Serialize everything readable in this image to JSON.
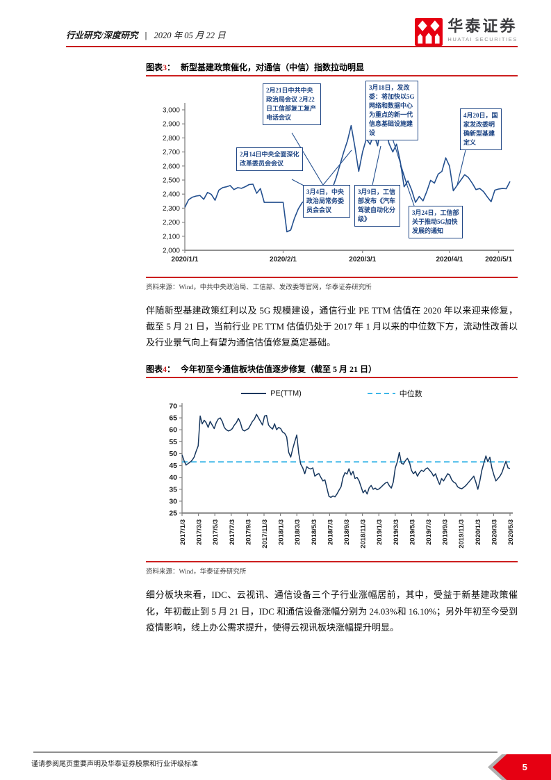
{
  "header": {
    "category": "行业研究/深度研究",
    "divider": "|",
    "date": "2020 年 05 月 22 日",
    "brand_cn": "华泰证券",
    "brand_en": "HUATAI SECURITIES"
  },
  "figures": [
    {
      "prefix": "图表",
      "num": "3",
      "colon": "：",
      "title": "新型基建政策催化，对通信（中信）指数拉动明显",
      "source": "资料来源：Wind，中共中央政治局、工信部、发改委等官网，华泰证券研究所",
      "annotations": [
        "2月14日中央全面深化改革委员会会议",
        "2月21日中共中央政治局会议 2月22日工信部复工复产电话会议",
        "3月4日，中央政治局常务委员会会议",
        "3月9日，工信部发布《汽车驾驶自动化分级》",
        "3月18日，发改委：将加快以5G网络和数据中心为重点的新一代信息基础设施建设",
        "3月24日，工信部关于推动5G加快发展的通知",
        "4月20日，国家发改委明确新型基建定义"
      ]
    },
    {
      "prefix": "图表",
      "num": "4",
      "colon": "：",
      "title": "今年初至今通信板块估值逐步修复（截至 5 月 21 日）",
      "source": "资料来源：Wind，华泰证券研究所"
    }
  ],
  "paragraphs": {
    "p1": "伴随新型基建政策红利以及 5G 规模建设，通信行业 PE TTM 估值在 2020 年以来迎来修复，截至 5 月 21 日，当前行业 PE TTM 估值仍处于 2017 年 1 月以来的中位数下方，流动性改善以及行业景气向上有望为通信估值修复奠定基础。",
    "p2": "细分板块来看，IDC、云视讯、通信设备三个子行业涨幅居前，其中，受益于新基建政策催化，年初截止到 5 月 21 日，IDC 和通信设备涨幅分别为 24.03%和 16.10%；另外年初至今受到疫情影响，线上办公需求提升，使得云视讯板块涨幅提升明显。"
  },
  "chart_data": [
    {
      "type": "line",
      "title": "新型基建政策催化，对通信（中信）指数拉动明显",
      "ylim": [
        2000,
        3000
      ],
      "yticks": [
        2000,
        2100,
        2200,
        2300,
        2400,
        2500,
        2600,
        2700,
        2800,
        2900,
        3000
      ],
      "x_tick_labels": [
        "2020/1/1",
        "2020/2/1",
        "2020/3/1",
        "2020/4/1",
        "2020/5/1"
      ],
      "x_tick_indices": [
        0,
        26,
        47,
        70,
        83
      ],
      "line_color": "#24508f",
      "values": [
        2305,
        2360,
        2378,
        2386,
        2390,
        2363,
        2412,
        2398,
        2356,
        2428,
        2446,
        2452,
        2461,
        2432,
        2446,
        2441,
        2453,
        2468,
        2471,
        2406,
        2439,
        2341,
        2341,
        2341,
        2341,
        2341,
        2341,
        2131,
        2144,
        2228,
        2294,
        2338,
        2361,
        2390,
        2399,
        2384,
        2371,
        2404,
        2366,
        2438,
        2515,
        2605,
        2698,
        2778,
        2888,
        2732,
        2562,
        2700,
        2793,
        2754,
        2828,
        2744,
        2908,
        2878,
        2760,
        2700,
        2756,
        2628,
        2452,
        2494,
        2428,
        2341,
        2383,
        2352,
        2420,
        2498,
        2478,
        2542,
        2562,
        2658,
        2600,
        2424,
        2462,
        2500,
        2538,
        2518,
        2478,
        2432,
        2440,
        2418,
        2380,
        2346,
        2428,
        2436,
        2440,
        2438,
        2490
      ]
    },
    {
      "type": "line",
      "title": "今年初至今通信板块估值逐步修复（截至 5 月 21 日）",
      "legend": [
        "PE(TTM)",
        "中位数"
      ],
      "ylim": [
        25,
        70
      ],
      "yticks": [
        25,
        30,
        35,
        40,
        45,
        50,
        55,
        60,
        65,
        70
      ],
      "x_tick_labels": [
        "2017/1/3",
        "2017/3/3",
        "2017/5/3",
        "2017/7/3",
        "2017/9/3",
        "2017/11/3",
        "2018/1/3",
        "2018/3/3",
        "2018/5/3",
        "2018/7/3",
        "2018/9/3",
        "2018/11/3",
        "2019/1/3",
        "2019/3/3",
        "2019/5/3",
        "2019/7/3",
        "2019/9/3",
        "2019/11/3",
        "2020/1/3",
        "2020/3/3",
        "2020/5/3"
      ],
      "median": 46.5,
      "line_color": "#17375e",
      "median_color": "#3cb6e8",
      "values": [
        49.5,
        47.0,
        45.2,
        45.8,
        46.4,
        47.2,
        48.5,
        51.0,
        53.2,
        65.8,
        62.5,
        64.0,
        63.0,
        61.0,
        63.5,
        62.0,
        60.5,
        63.0,
        64.5,
        65.0,
        63.5,
        61.0,
        60.0,
        59.5,
        59.8,
        60.5,
        62.0,
        63.0,
        64.8,
        63.0,
        60.0,
        59.5,
        60.0,
        60.5,
        62.0,
        63.5,
        64.5,
        66.5,
        65.0,
        63.5,
        62.0,
        65.8,
        66.0,
        62.0,
        61.0,
        60.3,
        62.5,
        60.0,
        61.0,
        60.5,
        59.0,
        58.5,
        57.0,
        50.5,
        48.5,
        52.0,
        55.0,
        57.8,
        50.0,
        45.5,
        44.0,
        41.5,
        44.5,
        43.8,
        43.5,
        44.0,
        40.5,
        41.2,
        41.6,
        40.0,
        38.5,
        39.0,
        35.5,
        32.0,
        31.6,
        32.2,
        31.8,
        33.0,
        34.6,
        36.0,
        40.0,
        42.0,
        41.4,
        43.6,
        41.0,
        42.5,
        39.5,
        40.0,
        38.5,
        36.0,
        33.5,
        34.6,
        33.0,
        35.6,
        36.6,
        35.0,
        35.5,
        34.8,
        35.2,
        36.0,
        36.8,
        37.6,
        38.0,
        36.5,
        35.5,
        38.0,
        44.0,
        46.5,
        50.5,
        46.0,
        45.5,
        47.0,
        48.0,
        46.5,
        43.0,
        41.5,
        42.5,
        40.5,
        42.0,
        43.0,
        42.5,
        43.5,
        44.0,
        43.0,
        42.0,
        40.5,
        41.5,
        39.0,
        37.0,
        39.5,
        38.5,
        40.0,
        41.5,
        41.0,
        39.0,
        38.0,
        37.5,
        36.0,
        35.5,
        35.2,
        35.8,
        36.5,
        37.5,
        38.5,
        39.5,
        40.5,
        38.0,
        35.0,
        38.5,
        43.0,
        46.0,
        49.0,
        46.5,
        48.5,
        44.0,
        41.0,
        38.5,
        39.5,
        40.5,
        42.0,
        44.5,
        46.8,
        44.0,
        43.7
      ]
    }
  ],
  "footer": {
    "disclaimer": "谨请参阅尾页重要声明及华泰证券股票和行业评级标准",
    "page": "5"
  }
}
